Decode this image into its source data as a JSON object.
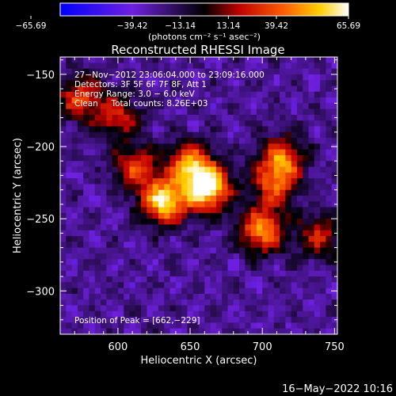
{
  "colorbar": {
    "ticks": [
      "−65.69",
      "−39.42",
      "−13.14",
      "13.14",
      "39.42",
      "65.69"
    ],
    "units": "(photons cm⁻² s⁻¹ asec⁻²)"
  },
  "info": {
    "line1": "27−Nov−2012 23:06:04.000 to 23:09:16.000",
    "line2": "Detectors: 3F 5F 6F 7F 8F, Att 1",
    "line3": "Energy Range: 3.0 − 6.0 keV",
    "line4": "Clean     Total counts: 8.26E+03",
    "peak": "Position of Peak = [662,−229]"
  },
  "timestamp": "16−May−2022 10:16",
  "chart_data": {
    "type": "heatmap",
    "title": "Reconstructed RHESSI Image",
    "xlabel": "Heliocentric X (arcsec)",
    "ylabel": "Heliocentric Y (arcsec)",
    "xlim": [
      560,
      752
    ],
    "ylim": [
      -330,
      -138
    ],
    "xticks": [
      600,
      650,
      700,
      750
    ],
    "yticks": [
      -150,
      -200,
      -250,
      -300
    ],
    "xtick_labels": [
      "600",
      "650",
      "700",
      "750"
    ],
    "ytick_labels": [
      "−150",
      "−200",
      "−250",
      "−300"
    ],
    "colorbar_range": [
      -65.69,
      65.69
    ],
    "colormap": "blue-purple-black-red-yellow-white",
    "peak": [
      662,
      -229
    ],
    "sources": [
      {
        "x": 662,
        "y": -229,
        "value": 65.7
      },
      {
        "x": 632,
        "y": -238,
        "value": 58.0
      },
      {
        "x": 650,
        "y": -212,
        "value": 38.0
      },
      {
        "x": 700,
        "y": -258,
        "value": 44.0
      },
      {
        "x": 714,
        "y": -208,
        "value": 32.0
      },
      {
        "x": 708,
        "y": -226,
        "value": 26.0
      },
      {
        "x": 612,
        "y": -215,
        "value": 25.0
      },
      {
        "x": 574,
        "y": -166,
        "value": 28.0
      },
      {
        "x": 600,
        "y": -180,
        "value": 20.0
      },
      {
        "x": 740,
        "y": -262,
        "value": 18.0
      }
    ]
  }
}
